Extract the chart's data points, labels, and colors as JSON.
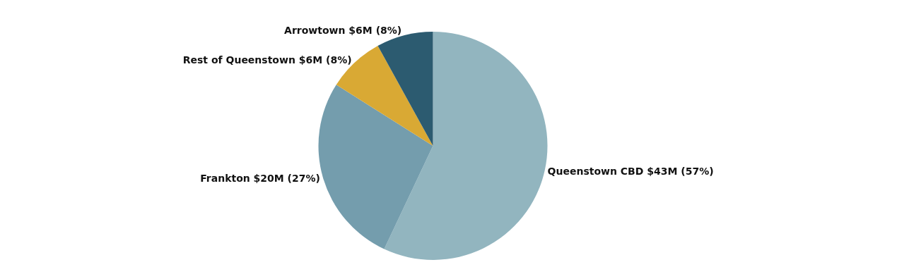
{
  "chart_data": {
    "type": "pie",
    "categories": [
      "Queenstown CBD",
      "Frankton",
      "Rest of Queenstown",
      "Arrowtown"
    ],
    "values": [
      57,
      27,
      8,
      8
    ],
    "value_labels": [
      "$43M (57%)",
      "$20M (27%)",
      "$6M (8%)",
      "$6M (8%)"
    ],
    "colors": [
      "#92b5bf",
      "#749dad",
      "#d9a934",
      "#2c5b70"
    ],
    "legend": false
  }
}
